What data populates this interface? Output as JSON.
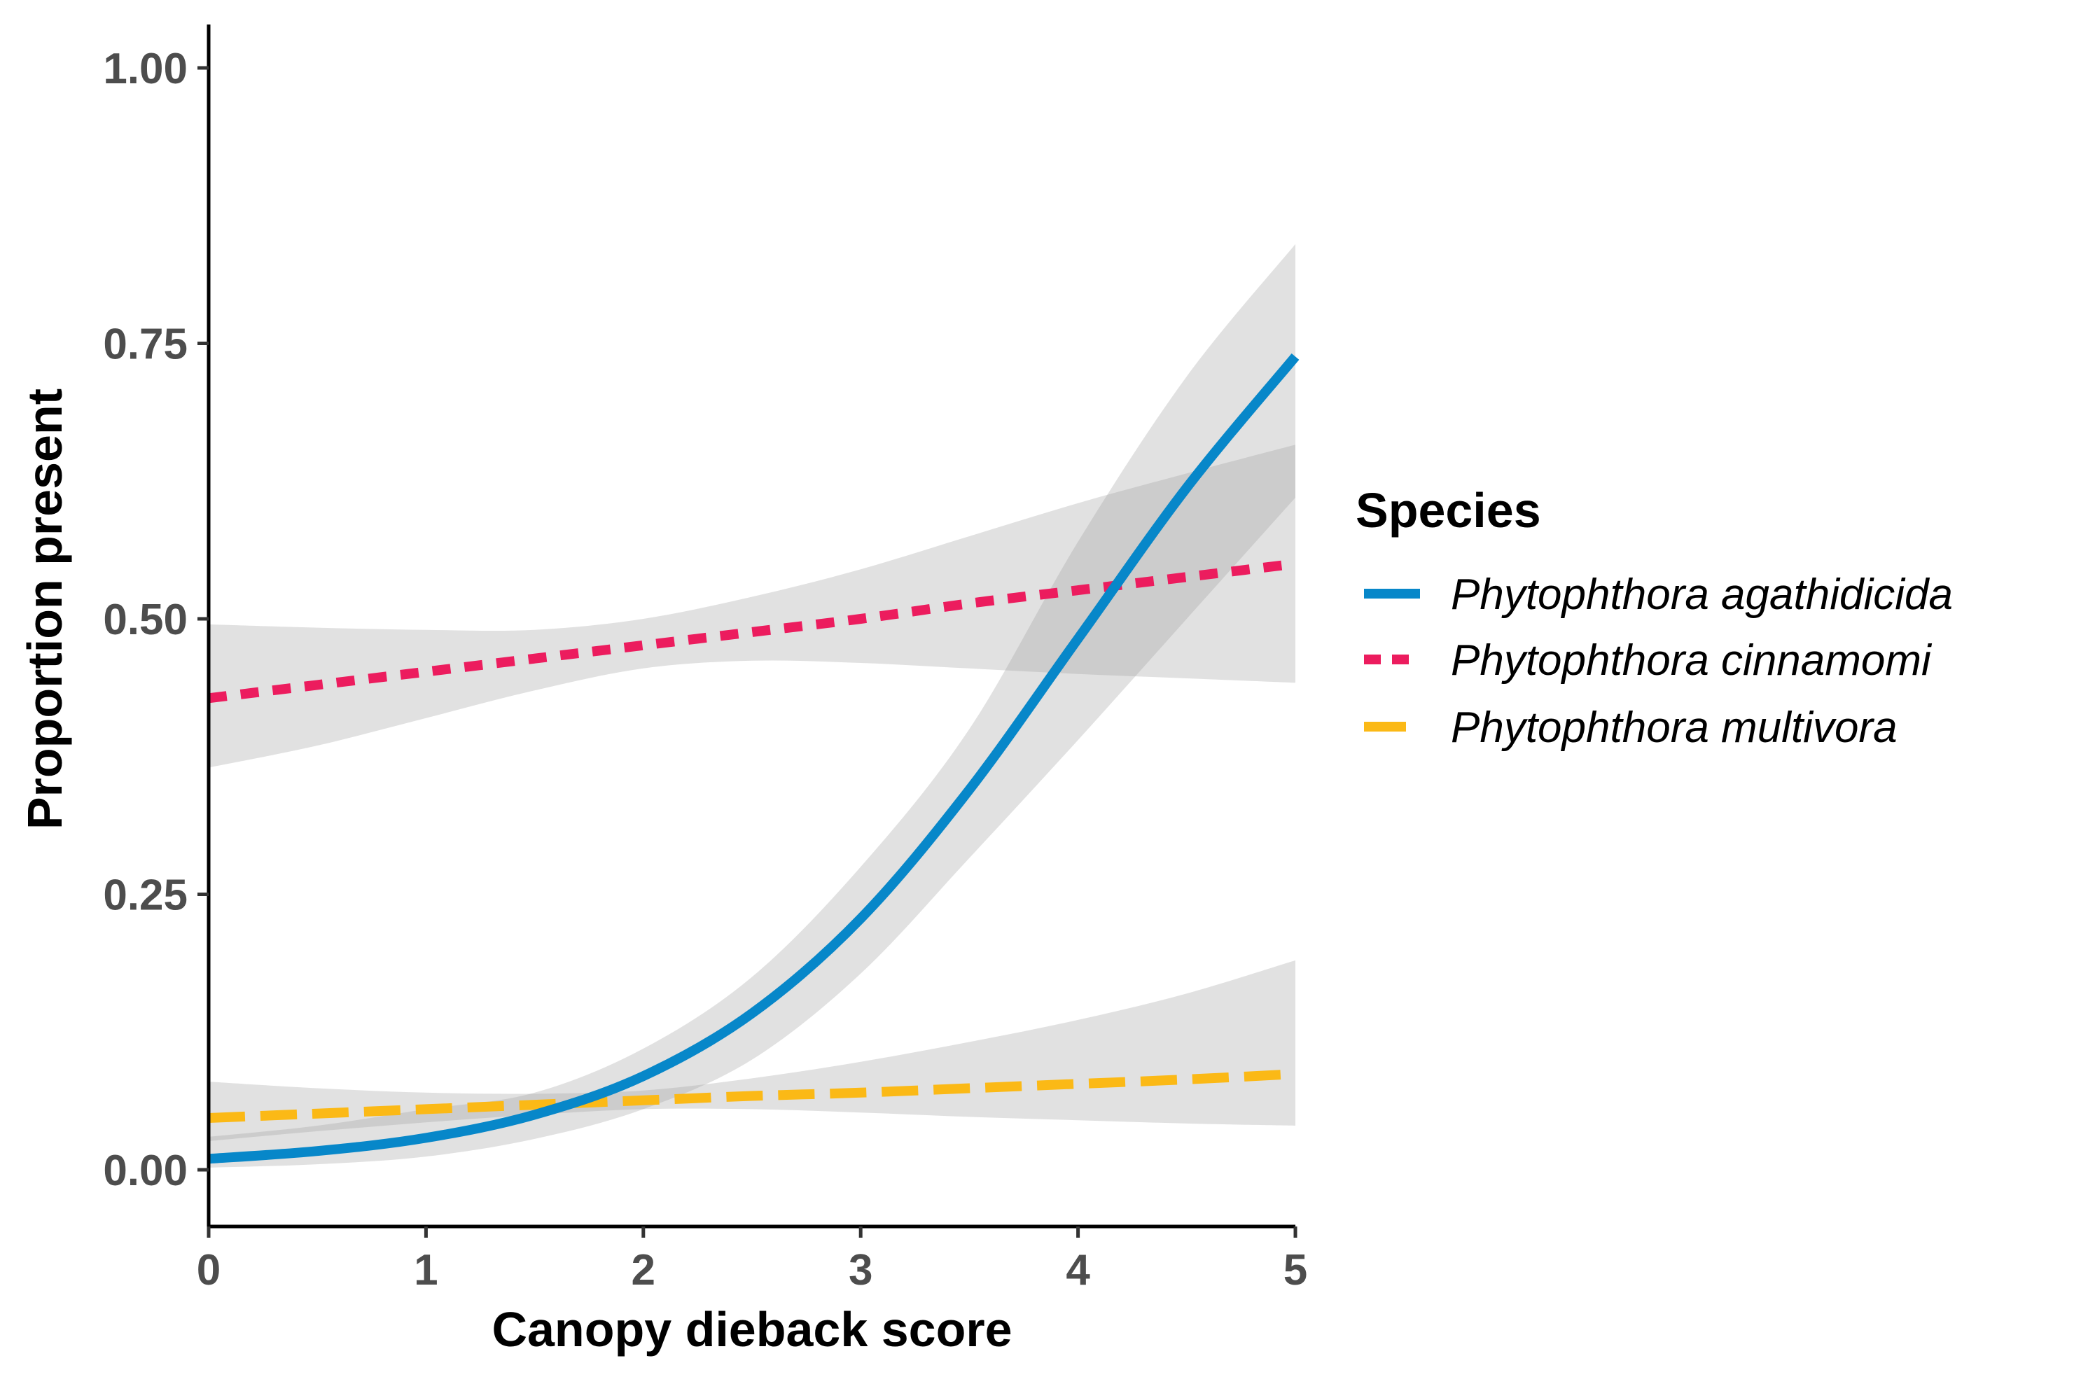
{
  "chart_data": {
    "type": "line",
    "title": "",
    "xlabel": "Canopy dieback score",
    "ylabel": "Proportion present",
    "xlim": [
      0,
      5
    ],
    "ylim": [
      -0.05,
      1.04
    ],
    "x_ticks": [
      0,
      1,
      2,
      3,
      4,
      5
    ],
    "x_tick_labels": [
      "0",
      "1",
      "2",
      "3",
      "4",
      "5"
    ],
    "y_ticks": [
      0,
      0.25,
      0.5,
      0.75,
      1.0
    ],
    "y_tick_labels": [
      "0.00",
      "0.25",
      "0.50",
      "0.75",
      "1.00"
    ],
    "grid": false,
    "legend": {
      "title": "Species",
      "position": "right"
    },
    "series": [
      {
        "name": "Phytophthora agathidicida",
        "color": "#0787c9",
        "line_style": "solid",
        "x": [
          0,
          0.5,
          1,
          1.5,
          2,
          2.5,
          3,
          3.5,
          4,
          4.5,
          5
        ],
        "y": [
          0.01,
          0.017,
          0.029,
          0.05,
          0.085,
          0.142,
          0.228,
          0.345,
          0.482,
          0.619,
          0.738
        ],
        "ci_lower": [
          0.002,
          0.005,
          0.012,
          0.028,
          0.055,
          0.1,
          0.178,
          0.283,
          0.39,
          0.5,
          0.61
        ],
        "ci_upper": [
          0.03,
          0.04,
          0.055,
          0.07,
          0.11,
          0.175,
          0.275,
          0.4,
          0.57,
          0.72,
          0.84
        ]
      },
      {
        "name": "Phytophthora cinnamomi",
        "color": "#ec1c5e",
        "line_style": "dashed",
        "x": [
          0,
          0.5,
          1,
          1.5,
          2,
          2.5,
          3,
          3.5,
          4,
          4.5,
          5
        ],
        "y": [
          0.428,
          0.44,
          0.452,
          0.464,
          0.476,
          0.488,
          0.5,
          0.514,
          0.526,
          0.538,
          0.55
        ],
        "ci_lower": [
          0.365,
          0.385,
          0.41,
          0.435,
          0.455,
          0.462,
          0.46,
          0.455,
          0.45,
          0.446,
          0.442
        ],
        "ci_upper": [
          0.495,
          0.492,
          0.49,
          0.49,
          0.5,
          0.52,
          0.545,
          0.575,
          0.605,
          0.632,
          0.658
        ]
      },
      {
        "name": "Phytophthora multivora",
        "color": "#fbb916",
        "line_style": "dashed",
        "x": [
          0,
          0.5,
          1,
          1.5,
          2,
          2.5,
          3,
          3.5,
          4,
          4.5,
          5
        ],
        "y": [
          0.047,
          0.051,
          0.055,
          0.059,
          0.063,
          0.067,
          0.07,
          0.074,
          0.078,
          0.082,
          0.087
        ],
        "ci_lower": [
          0.026,
          0.035,
          0.043,
          0.05,
          0.055,
          0.055,
          0.052,
          0.048,
          0.045,
          0.042,
          0.04
        ],
        "ci_upper": [
          0.08,
          0.074,
          0.07,
          0.069,
          0.072,
          0.083,
          0.098,
          0.116,
          0.136,
          0.16,
          0.19
        ]
      }
    ]
  }
}
